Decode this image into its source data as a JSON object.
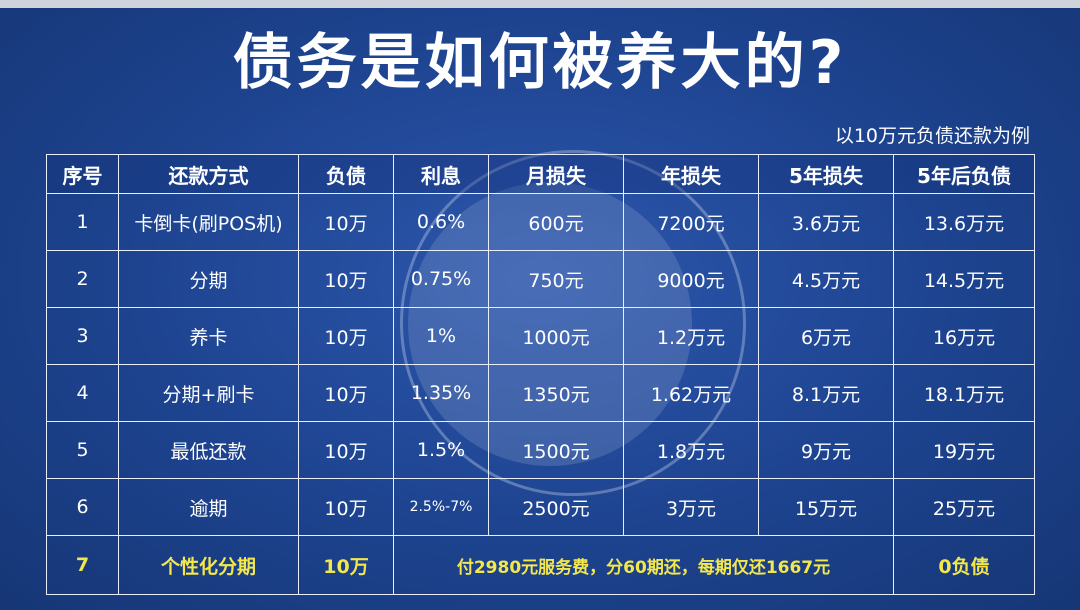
{
  "title": "债务是如何被养大的?",
  "subtitle": "以10万元负债还款为例",
  "table": {
    "headers": [
      "序号",
      "还款方式",
      "负债",
      "利息",
      "月损失",
      "年损失",
      "5年损失",
      "5年后负债"
    ],
    "rows": [
      [
        "1",
        "卡倒卡(刷POS机)",
        "10万",
        "0.6%",
        "600元",
        "7200元",
        "3.6万元",
        "13.6万元"
      ],
      [
        "2",
        "分期",
        "10万",
        "0.75%",
        "750元",
        "9000元",
        "4.5万元",
        "14.5万元"
      ],
      [
        "3",
        "养卡",
        "10万",
        "1%",
        "1000元",
        "1.2万元",
        "6万元",
        "16万元"
      ],
      [
        "4",
        "分期+刷卡",
        "10万",
        "1.35%",
        "1350元",
        "1.62万元",
        "8.1万元",
        "18.1万元"
      ],
      [
        "5",
        "最低还款",
        "10万",
        "1.5%",
        "1500元",
        "1.8万元",
        "9万元",
        "19万元"
      ],
      [
        "6",
        "逾期",
        "10万",
        "2.5%-7%",
        "2500元",
        "3万元",
        "15万元",
        "25万元"
      ]
    ],
    "highlight": {
      "num": "7",
      "method": "个性化分期",
      "debt": "10万",
      "note": "付2980元服务费，分60期还，每期仅还1667元",
      "result": "0负债"
    }
  },
  "colors": {
    "background": "#1a3f8c",
    "highlight_text": "#f3e74a",
    "border": "#e8eefb"
  }
}
